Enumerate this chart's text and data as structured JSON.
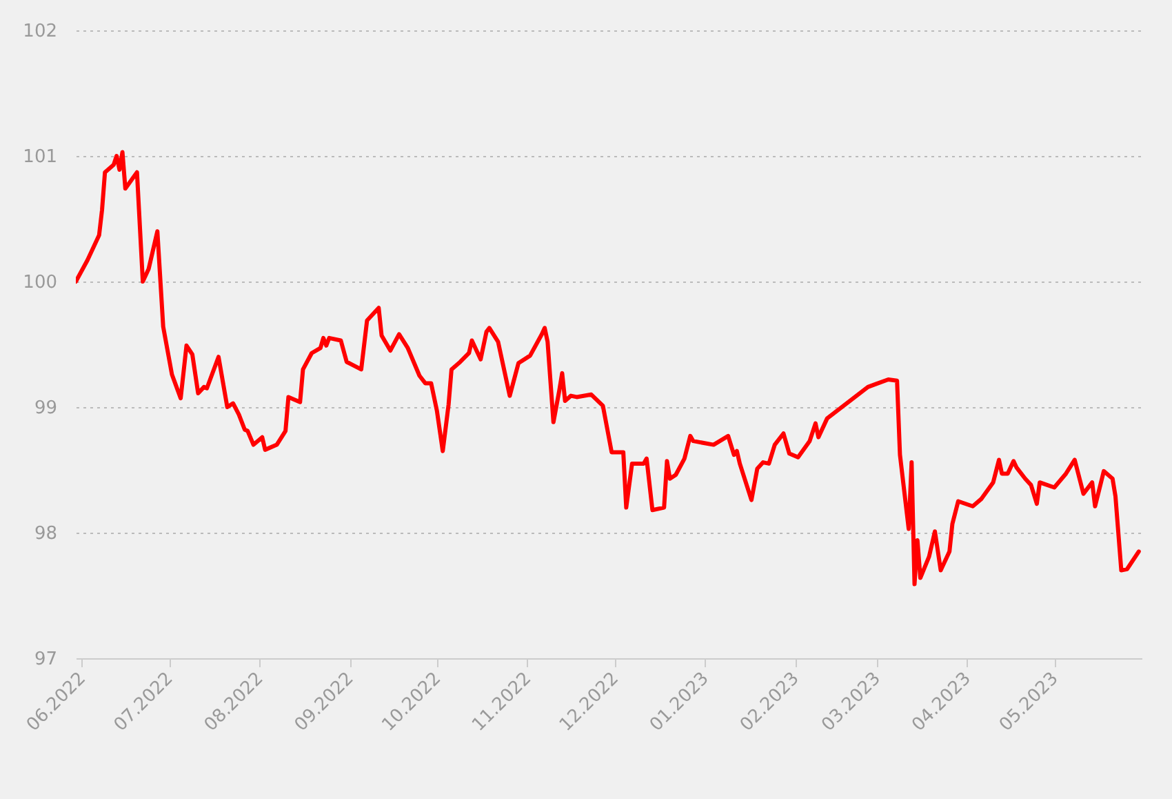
{
  "chart_data": {
    "type": "line",
    "x": [
      "2022-05-30",
      "2022-06-03",
      "2022-06-07",
      "2022-06-08",
      "2022-06-09",
      "2022-06-12",
      "2022-06-13",
      "2022-06-14",
      "2022-06-15",
      "2022-06-16",
      "2022-06-20",
      "2022-06-22",
      "2022-06-24",
      "2022-06-27",
      "2022-06-29",
      "2022-07-02",
      "2022-07-05",
      "2022-07-07",
      "2022-07-09",
      "2022-07-11",
      "2022-07-13",
      "2022-07-14",
      "2022-07-18",
      "2022-07-21",
      "2022-07-23",
      "2022-07-25",
      "2022-07-27",
      "2022-07-28",
      "2022-07-30",
      "2022-08-02",
      "2022-08-03",
      "2022-08-07",
      "2022-08-10",
      "2022-08-11",
      "2022-08-15",
      "2022-08-16",
      "2022-08-19",
      "2022-08-22",
      "2022-08-23",
      "2022-08-24",
      "2022-08-25",
      "2022-08-29",
      "2022-08-31",
      "2022-09-05",
      "2022-09-07",
      "2022-09-11",
      "2022-09-12",
      "2022-09-15",
      "2022-09-18",
      "2022-09-21",
      "2022-09-25",
      "2022-09-27",
      "2022-09-29",
      "2022-10-01",
      "2022-10-03",
      "2022-10-05",
      "2022-10-06",
      "2022-10-09",
      "2022-10-12",
      "2022-10-13",
      "2022-10-16",
      "2022-10-18",
      "2022-10-19",
      "2022-10-22",
      "2022-10-26",
      "2022-10-29",
      "2022-11-02",
      "2022-11-06",
      "2022-11-07",
      "2022-11-08",
      "2022-11-10",
      "2022-11-12",
      "2022-11-13",
      "2022-11-14",
      "2022-11-16",
      "2022-11-18",
      "2022-11-23",
      "2022-11-27",
      "2022-11-30",
      "2022-12-04",
      "2022-12-05",
      "2022-12-07",
      "2022-12-11",
      "2022-12-12",
      "2022-12-14",
      "2022-12-18",
      "2022-12-19",
      "2022-12-20",
      "2022-12-22",
      "2022-12-25",
      "2022-12-27",
      "2022-12-28",
      "2023-01-04",
      "2023-01-09",
      "2023-01-11",
      "2023-01-12",
      "2023-01-13",
      "2023-01-17",
      "2023-01-19",
      "2023-01-21",
      "2023-01-23",
      "2023-01-25",
      "2023-01-28",
      "2023-01-30",
      "2023-02-02",
      "2023-02-06",
      "2023-02-08",
      "2023-02-09",
      "2023-02-12",
      "2023-02-26",
      "2023-03-05",
      "2023-03-08",
      "2023-03-09",
      "2023-03-12",
      "2023-03-13",
      "2023-03-14",
      "2023-03-15",
      "2023-03-16",
      "2023-03-19",
      "2023-03-21",
      "2023-03-23",
      "2023-03-26",
      "2023-03-27",
      "2023-03-29",
      "2023-04-03",
      "2023-04-06",
      "2023-04-10",
      "2023-04-12",
      "2023-04-13",
      "2023-04-15",
      "2023-04-17",
      "2023-04-18",
      "2023-04-21",
      "2023-04-23",
      "2023-04-25",
      "2023-04-26",
      "2023-05-01",
      "2023-05-05",
      "2023-05-08",
      "2023-05-11",
      "2023-05-14",
      "2023-05-15",
      "2023-05-18",
      "2023-05-21",
      "2023-05-22",
      "2023-05-24",
      "2023-05-26",
      "2023-05-30"
    ],
    "series": [
      {
        "color": "#ff0000",
        "values": [
          100.0,
          100.17,
          100.37,
          100.57,
          100.87,
          100.93,
          101.0,
          100.89,
          101.03,
          100.74,
          100.87,
          100.0,
          100.1,
          100.4,
          99.64,
          99.26,
          99.07,
          99.49,
          99.42,
          99.11,
          99.16,
          99.15,
          99.4,
          99.0,
          99.03,
          98.94,
          98.82,
          98.81,
          98.7,
          98.76,
          98.66,
          98.7,
          98.81,
          99.08,
          99.04,
          99.3,
          99.43,
          99.47,
          99.55,
          99.49,
          99.55,
          99.53,
          99.36,
          99.3,
          99.69,
          99.79,
          99.57,
          99.45,
          99.58,
          99.47,
          99.25,
          99.19,
          99.19,
          98.97,
          98.65,
          99.02,
          99.3,
          99.36,
          99.43,
          99.53,
          99.38,
          99.6,
          99.63,
          99.52,
          99.09,
          99.35,
          99.41,
          99.58,
          99.63,
          99.52,
          98.88,
          99.13,
          99.27,
          99.05,
          99.09,
          99.08,
          99.1,
          99.01,
          98.64,
          98.64,
          98.2,
          98.55,
          98.55,
          98.59,
          98.18,
          98.2,
          98.57,
          98.43,
          98.46,
          98.59,
          98.77,
          98.73,
          98.7,
          98.77,
          98.62,
          98.65,
          98.55,
          98.26,
          98.51,
          98.56,
          98.55,
          98.7,
          98.79,
          98.63,
          98.6,
          98.73,
          98.87,
          98.76,
          98.91,
          99.16,
          99.22,
          99.21,
          98.62,
          98.03,
          98.56,
          97.59,
          97.94,
          97.64,
          97.81,
          98.01,
          97.7,
          97.85,
          98.07,
          98.25,
          98.21,
          98.27,
          98.4,
          98.58,
          98.47,
          98.47,
          98.57,
          98.52,
          98.43,
          98.38,
          98.23,
          98.4,
          98.36,
          98.47,
          98.58,
          98.31,
          98.4,
          98.21,
          98.49,
          98.43,
          98.29,
          97.7,
          97.71,
          97.85
        ]
      }
    ],
    "xlim": [
      "2022-05-30",
      "2023-05-31"
    ],
    "xticks": [
      {
        "value": "2022-06-01",
        "label": "06.2022"
      },
      {
        "value": "2022-07-01",
        "label": "07.2022"
      },
      {
        "value": "2022-08-01",
        "label": "08.2022"
      },
      {
        "value": "2022-09-01",
        "label": "09.2022"
      },
      {
        "value": "2022-10-01",
        "label": "10.2022"
      },
      {
        "value": "2022-11-01",
        "label": "11.2022"
      },
      {
        "value": "2022-12-01",
        "label": "12.2022"
      },
      {
        "value": "2023-01-01",
        "label": "01.2023"
      },
      {
        "value": "2023-02-01",
        "label": "02.2023"
      },
      {
        "value": "2023-03-01",
        "label": "03.2023"
      },
      {
        "value": "2023-04-01",
        "label": "04.2023"
      },
      {
        "value": "2023-05-01",
        "label": "05.2023"
      }
    ],
    "ylim": [
      97,
      102
    ],
    "yticks": [
      97,
      98,
      99,
      100,
      101,
      102
    ],
    "grid": "y",
    "line_style": "solid"
  }
}
